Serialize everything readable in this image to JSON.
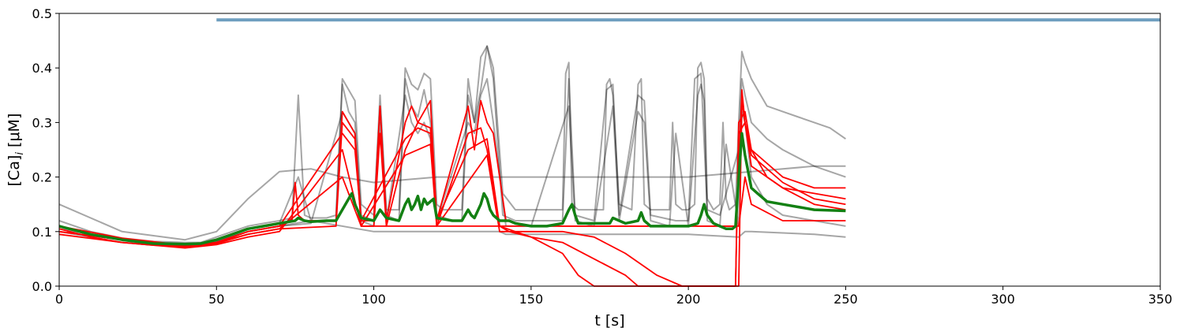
{
  "chart_data": {
    "type": "line",
    "xlabel": "t [s]",
    "ylabel": "[Ca]",
    "ylabel_subscript": "i",
    "ylabel_unit": "[μM]",
    "xlim": [
      0,
      350
    ],
    "ylim": [
      0,
      0.5
    ],
    "xticks": [
      "0",
      "50",
      "100",
      "150",
      "200",
      "250",
      "300",
      "350"
    ],
    "yticks": [
      "0.0",
      "0.1",
      "0.2",
      "0.3",
      "0.4",
      "0.5"
    ],
    "xtick_values": [
      0,
      50,
      100,
      150,
      200,
      250,
      300,
      350
    ],
    "ytick_values": [
      0.0,
      0.1,
      0.2,
      0.3,
      0.4,
      0.5
    ],
    "grid": false,
    "colors": {
      "bar": "#6e9ebf",
      "black_traces": "#000000",
      "red_traces": "#ff0000",
      "mean": "#138013"
    },
    "stimulus_bar": {
      "x": [
        50,
        350
      ],
      "y": 0.488
    },
    "black_traces": [
      {
        "x": [
          0,
          10,
          20,
          30,
          40,
          45,
          50,
          55,
          60,
          65,
          70,
          74,
          76,
          78,
          80,
          85,
          88,
          90,
          92,
          94,
          96,
          100,
          102,
          104,
          108,
          110,
          112,
          114,
          116,
          118,
          120,
          122,
          125,
          128,
          130,
          132,
          134,
          136,
          138,
          141,
          145,
          150,
          155,
          160,
          161,
          162,
          163,
          165,
          170,
          173,
          174,
          175,
          176,
          178,
          182,
          184,
          185,
          186,
          188,
          194,
          195,
          196,
          198,
          200,
          202,
          203,
          204,
          205,
          206,
          208,
          210,
          211,
          212,
          213,
          215,
          216,
          217,
          218,
          220,
          222,
          225,
          230,
          235,
          240,
          245,
          250
        ],
        "y": [
          0.12,
          0.1,
          0.088,
          0.082,
          0.08,
          0.08,
          0.09,
          0.1,
          0.11,
          0.115,
          0.12,
          0.125,
          0.35,
          0.13,
          0.125,
          0.125,
          0.13,
          0.38,
          0.36,
          0.34,
          0.15,
          0.13,
          0.35,
          0.14,
          0.14,
          0.4,
          0.37,
          0.36,
          0.39,
          0.38,
          0.15,
          0.14,
          0.14,
          0.14,
          0.38,
          0.3,
          0.42,
          0.44,
          0.4,
          0.17,
          0.14,
          0.14,
          0.14,
          0.14,
          0.39,
          0.41,
          0.15,
          0.14,
          0.14,
          0.14,
          0.37,
          0.38,
          0.35,
          0.15,
          0.14,
          0.37,
          0.38,
          0.15,
          0.14,
          0.14,
          0.3,
          0.15,
          0.14,
          0.14,
          0.15,
          0.4,
          0.41,
          0.38,
          0.16,
          0.14,
          0.15,
          0.3,
          0.16,
          0.14,
          0.15,
          0.3,
          0.43,
          0.41,
          0.38,
          0.36,
          0.33,
          0.32,
          0.31,
          0.3,
          0.29,
          0.27
        ]
      },
      {
        "x": [
          0,
          10,
          20,
          30,
          40,
          45,
          50,
          55,
          60,
          70,
          76,
          80,
          88,
          90,
          92,
          94,
          96,
          100,
          102,
          104,
          108,
          110,
          112,
          114,
          116,
          118,
          120,
          125,
          128,
          130,
          132,
          134,
          136,
          138,
          141,
          145,
          150,
          160,
          162,
          164,
          170,
          174,
          176,
          178,
          184,
          186,
          188,
          196,
          200,
          202,
          204,
          206,
          210,
          216,
          217,
          218,
          220,
          225,
          230,
          240,
          250
        ],
        "y": [
          0.11,
          0.095,
          0.085,
          0.08,
          0.078,
          0.079,
          0.085,
          0.095,
          0.105,
          0.115,
          0.2,
          0.12,
          0.12,
          0.37,
          0.32,
          0.3,
          0.13,
          0.12,
          0.33,
          0.13,
          0.12,
          0.38,
          0.33,
          0.31,
          0.36,
          0.3,
          0.13,
          0.12,
          0.12,
          0.35,
          0.3,
          0.36,
          0.44,
          0.38,
          0.13,
          0.12,
          0.12,
          0.12,
          0.38,
          0.13,
          0.12,
          0.36,
          0.37,
          0.13,
          0.35,
          0.34,
          0.13,
          0.12,
          0.12,
          0.38,
          0.39,
          0.14,
          0.13,
          0.25,
          0.38,
          0.35,
          0.3,
          0.27,
          0.25,
          0.22,
          0.2
        ]
      },
      {
        "x": [
          0,
          10,
          20,
          30,
          40,
          45,
          50,
          60,
          70,
          80,
          90,
          92,
          94,
          96,
          100,
          102,
          104,
          110,
          112,
          114,
          116,
          118,
          120,
          130,
          132,
          134,
          136,
          138,
          142,
          150,
          162,
          164,
          170,
          176,
          178,
          184,
          186,
          188,
          194,
          196,
          200,
          203,
          204,
          205,
          206,
          210,
          212,
          216,
          217,
          218,
          220,
          225,
          230,
          240,
          250
        ],
        "y": [
          0.1,
          0.09,
          0.08,
          0.076,
          0.075,
          0.076,
          0.082,
          0.1,
          0.11,
          0.115,
          0.32,
          0.3,
          0.28,
          0.12,
          0.11,
          0.3,
          0.12,
          0.35,
          0.3,
          0.28,
          0.3,
          0.27,
          0.12,
          0.3,
          0.28,
          0.35,
          0.38,
          0.3,
          0.11,
          0.11,
          0.33,
          0.12,
          0.11,
          0.33,
          0.12,
          0.32,
          0.3,
          0.12,
          0.11,
          0.28,
          0.11,
          0.35,
          0.37,
          0.34,
          0.12,
          0.11,
          0.26,
          0.11,
          0.32,
          0.3,
          0.2,
          0.15,
          0.13,
          0.12,
          0.11
        ]
      },
      {
        "x": [
          0,
          20,
          40,
          50,
          60,
          70,
          80,
          90,
          100,
          120,
          140,
          160,
          180,
          200,
          220,
          240,
          250
        ],
        "y": [
          0.15,
          0.1,
          0.085,
          0.1,
          0.16,
          0.21,
          0.215,
          0.2,
          0.19,
          0.2,
          0.2,
          0.2,
          0.2,
          0.2,
          0.21,
          0.22,
          0.22
        ]
      },
      {
        "x": [
          0,
          20,
          40,
          50,
          60,
          70,
          80,
          100,
          120,
          140,
          142,
          160,
          180,
          200,
          216,
          218,
          220,
          240,
          250
        ],
        "y": [
          0.105,
          0.085,
          0.075,
          0.082,
          0.1,
          0.11,
          0.12,
          0.1,
          0.1,
          0.1,
          0.095,
          0.095,
          0.095,
          0.095,
          0.09,
          0.1,
          0.1,
          0.095,
          0.09
        ]
      }
    ],
    "red_traces": [
      {
        "x": [
          0,
          10,
          20,
          30,
          40,
          45,
          50,
          60,
          70,
          74,
          75,
          76,
          78,
          80,
          88,
          90,
          92,
          94,
          96,
          100,
          102,
          104,
          110,
          112,
          114,
          116,
          118,
          120,
          130,
          132,
          134,
          136,
          138,
          142,
          150,
          160,
          170,
          180,
          190,
          200,
          210,
          215,
          216,
          217,
          218,
          220,
          225,
          230,
          240,
          250
        ],
        "y": [
          0.105,
          0.09,
          0.08,
          0.075,
          0.073,
          0.074,
          0.08,
          0.1,
          0.11,
          0.12,
          0.19,
          0.13,
          0.12,
          0.12,
          0.12,
          0.32,
          0.3,
          0.28,
          0.12,
          0.12,
          0.33,
          0.12,
          0.3,
          0.33,
          0.3,
          0.32,
          0.34,
          0.12,
          0.33,
          0.25,
          0.34,
          0.3,
          0.28,
          0.12,
          0.11,
          0.11,
          0.11,
          0.11,
          0.11,
          0.11,
          0.11,
          0.11,
          0.2,
          0.36,
          0.3,
          0.25,
          0.2,
          0.18,
          0.17,
          0.16
        ]
      },
      {
        "x": [
          0,
          20,
          40,
          50,
          60,
          70,
          88,
          90,
          94,
          96,
          100,
          102,
          104,
          110,
          114,
          118,
          120,
          130,
          134,
          136,
          140,
          143,
          150,
          160,
          165,
          170,
          180,
          190,
          196,
          200,
          210,
          215,
          216,
          218,
          220,
          230,
          240,
          250
        ],
        "y": [
          0.1,
          0.085,
          0.072,
          0.078,
          0.095,
          0.105,
          0.11,
          0.3,
          0.27,
          0.11,
          0.11,
          0.28,
          0.11,
          0.25,
          0.3,
          0.29,
          0.11,
          0.28,
          0.29,
          0.25,
          0.11,
          0.1,
          0.09,
          0.06,
          0.02,
          0.0,
          0.0,
          0.0,
          0.0,
          0.0,
          0.0,
          0.0,
          0.3,
          0.32,
          0.25,
          0.2,
          0.18,
          0.18
        ]
      },
      {
        "x": [
          0,
          20,
          40,
          50,
          60,
          70,
          90,
          94,
          96,
          110,
          114,
          118,
          120,
          130,
          136,
          140,
          145,
          150,
          160,
          170,
          180,
          184,
          185,
          200,
          210,
          216,
          217,
          218,
          220,
          230,
          240,
          250
        ],
        "y": [
          0.11,
          0.088,
          0.075,
          0.08,
          0.1,
          0.11,
          0.28,
          0.25,
          0.12,
          0.27,
          0.29,
          0.28,
          0.12,
          0.25,
          0.27,
          0.11,
          0.1,
          0.09,
          0.08,
          0.05,
          0.02,
          0.0,
          0.0,
          0.0,
          0.0,
          0.0,
          0.34,
          0.3,
          0.24,
          0.19,
          0.16,
          0.15
        ]
      },
      {
        "x": [
          0,
          20,
          40,
          50,
          60,
          70,
          90,
          96,
          110,
          118,
          120,
          136,
          140,
          150,
          160,
          170,
          180,
          190,
          198,
          200,
          215,
          216,
          218,
          220,
          230,
          240,
          250
        ],
        "y": [
          0.095,
          0.08,
          0.07,
          0.076,
          0.09,
          0.1,
          0.25,
          0.11,
          0.24,
          0.26,
          0.11,
          0.24,
          0.1,
          0.1,
          0.1,
          0.09,
          0.06,
          0.02,
          0.0,
          0.0,
          0.0,
          0.28,
          0.3,
          0.22,
          0.18,
          0.15,
          0.14
        ]
      },
      {
        "x": [
          0,
          20,
          40,
          50,
          60,
          70,
          90,
          96,
          120,
          140,
          150,
          160,
          170,
          180,
          200,
          216,
          218,
          220,
          230,
          240,
          250
        ],
        "y": [
          0.1,
          0.085,
          0.075,
          0.08,
          0.095,
          0.105,
          0.2,
          0.11,
          0.11,
          0.11,
          0.11,
          0.11,
          0.11,
          0.11,
          0.11,
          0.11,
          0.2,
          0.15,
          0.12,
          0.12,
          0.12
        ]
      }
    ],
    "mean_trace": {
      "x": [
        0,
        10,
        20,
        30,
        40,
        45,
        50,
        55,
        60,
        65,
        70,
        75,
        76,
        78,
        80,
        85,
        88,
        90,
        92,
        93,
        94,
        96,
        100,
        101,
        102,
        104,
        108,
        110,
        111,
        112,
        113,
        114,
        115,
        116,
        117,
        118,
        119,
        120,
        125,
        128,
        130,
        131,
        132,
        134,
        135,
        136,
        137,
        138,
        140,
        143,
        145,
        150,
        155,
        160,
        162,
        163,
        164,
        165,
        170,
        175,
        176,
        178,
        180,
        184,
        185,
        186,
        188,
        190,
        195,
        200,
        203,
        204,
        205,
        206,
        208,
        210,
        212,
        214,
        215,
        216,
        217,
        218,
        220,
        222,
        225,
        230,
        240,
        250
      ],
      "y": [
        0.11,
        0.095,
        0.085,
        0.078,
        0.077,
        0.078,
        0.085,
        0.095,
        0.105,
        0.11,
        0.115,
        0.12,
        0.125,
        0.12,
        0.118,
        0.12,
        0.12,
        0.14,
        0.16,
        0.17,
        0.15,
        0.125,
        0.12,
        0.13,
        0.14,
        0.125,
        0.12,
        0.15,
        0.16,
        0.14,
        0.15,
        0.165,
        0.14,
        0.16,
        0.15,
        0.155,
        0.16,
        0.125,
        0.12,
        0.12,
        0.14,
        0.13,
        0.125,
        0.15,
        0.17,
        0.16,
        0.14,
        0.13,
        0.12,
        0.12,
        0.115,
        0.11,
        0.11,
        0.115,
        0.14,
        0.15,
        0.13,
        0.115,
        0.115,
        0.115,
        0.125,
        0.12,
        0.115,
        0.12,
        0.135,
        0.12,
        0.11,
        0.11,
        0.11,
        0.11,
        0.115,
        0.13,
        0.15,
        0.13,
        0.115,
        0.11,
        0.105,
        0.105,
        0.11,
        0.2,
        0.28,
        0.24,
        0.18,
        0.17,
        0.155,
        0.15,
        0.14,
        0.138
      ]
    }
  }
}
